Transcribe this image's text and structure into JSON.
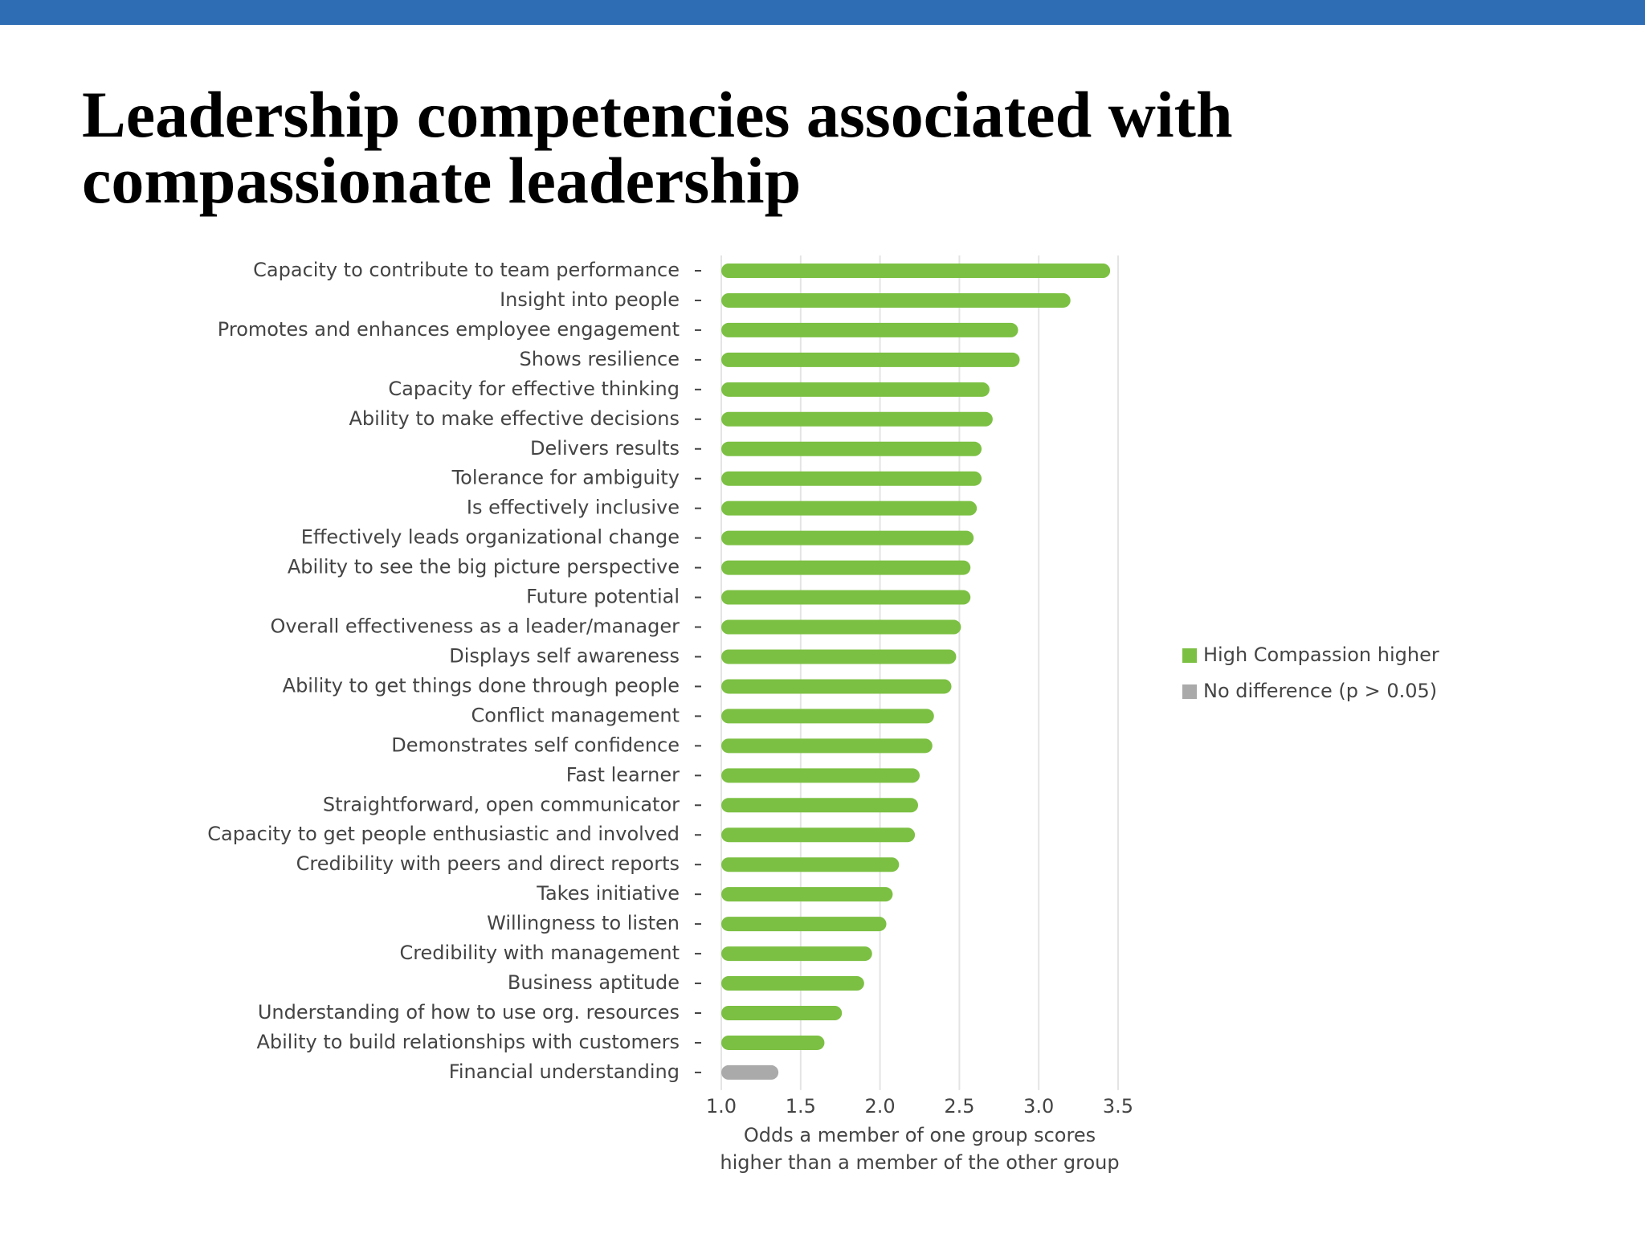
{
  "chart_data": {
    "type": "barh",
    "title": [
      "Leadership competencies associated with",
      "compassionate leadership"
    ],
    "categories": [
      "Capacity to contribute to team performance",
      "Insight into people",
      "Promotes and enhances employee engagement",
      "Shows resilience",
      "Capacity for effective thinking",
      "Ability to make effective decisions",
      "Delivers results",
      "Tolerance for ambiguity",
      "Is effectively inclusive",
      "Effectively leads organizational change",
      "Ability to see the big picture perspective",
      "Future potential",
      "Overall effectiveness as a leader/manager",
      "Displays self awareness",
      "Ability to get things done through people",
      "Conflict management",
      "Demonstrates self confidence",
      "Fast learner",
      "Straightforward, open communicator",
      "Capacity to get people enthusiastic and involved",
      "Credibility with peers and direct reports",
      "Takes initiative",
      "Willingness to listen",
      "Credibility with management",
      "Business aptitude",
      "Understanding of how to use org. resources",
      "Ability to build relationships with customers",
      "Financial understanding"
    ],
    "series": [
      {
        "name": "High Compassion higher",
        "color": "#7cc043",
        "values": [
          3.45,
          3.2,
          2.87,
          2.88,
          2.69,
          2.71,
          2.64,
          2.64,
          2.61,
          2.59,
          2.57,
          2.57,
          2.51,
          2.48,
          2.45,
          2.34,
          2.33,
          2.25,
          2.24,
          2.22,
          2.12,
          2.08,
          2.04,
          1.95,
          1.9,
          1.76,
          1.65,
          null
        ]
      },
      {
        "name": "No difference (p > 0.05)",
        "color": "#aaaaaa",
        "values": [
          null,
          null,
          null,
          null,
          null,
          null,
          null,
          null,
          null,
          null,
          null,
          null,
          null,
          null,
          null,
          null,
          null,
          null,
          null,
          null,
          null,
          null,
          null,
          null,
          null,
          null,
          null,
          1.36
        ]
      }
    ],
    "xlim": [
      1,
      3.5
    ],
    "xticks": [
      {
        "value": 1,
        "label": "1.0"
      },
      1.5,
      {
        "value": 2,
        "label": "2.0"
      },
      2.5,
      {
        "value": 3,
        "label": "3.0"
      },
      3.5
    ],
    "xlabel": [
      "Odds a member of one group scores",
      "higher than a member of the other group"
    ],
    "grid": true,
    "legend": "right"
  }
}
